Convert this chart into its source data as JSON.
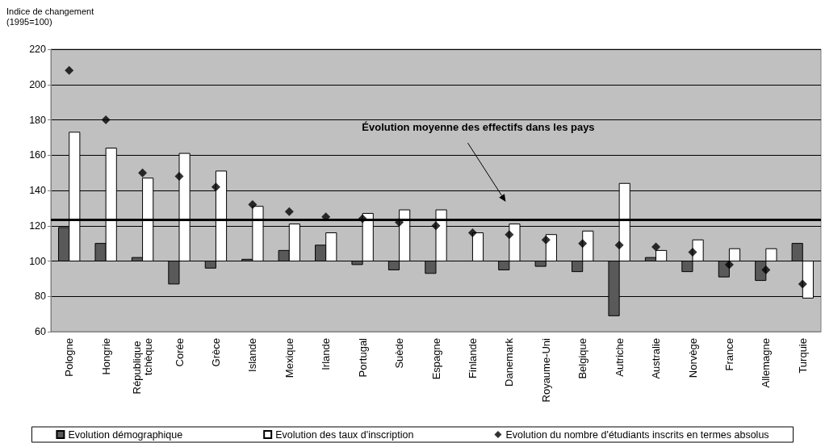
{
  "chart_data": {
    "type": "bar",
    "ylabel": "Indice de changement\n(1995=100)",
    "categories": [
      "Pologne",
      "Hongrie",
      "République tchèque",
      "Corée",
      "Grèce",
      "Islande",
      "Mexique",
      "Irlande",
      "Portugal",
      "Suède",
      "Espagne",
      "Finlande",
      "Danemark",
      "Royaume-Uni",
      "Belgique",
      "Autriche",
      "Australie",
      "Norvège",
      "France",
      "Allemagne",
      "Turquie"
    ],
    "series": [
      {
        "name": "Evolution démographique",
        "color": "#595959",
        "base": [
          100,
          100,
          100,
          100,
          100,
          100,
          100,
          100,
          100,
          100,
          100,
          null,
          100,
          100,
          100,
          100,
          100,
          100,
          100,
          100,
          100
        ],
        "values": [
          19,
          10,
          2,
          -13,
          -4,
          1,
          6,
          9,
          -2,
          -5,
          -7,
          null,
          -5,
          -3,
          -6,
          -31,
          2,
          -6,
          -9,
          -11,
          10
        ]
      },
      {
        "name": "Evolution des taux d'inscription",
        "color": "#ffffff",
        "base": [
          100,
          100,
          100,
          100,
          100,
          100,
          100,
          100,
          100,
          100,
          100,
          100,
          100,
          100,
          100,
          100,
          100,
          100,
          100,
          100,
          100
        ],
        "values": [
          73,
          64,
          47,
          61,
          51,
          31,
          21,
          16,
          27,
          29,
          29,
          16,
          21,
          15,
          17,
          44,
          6,
          12,
          7,
          7,
          -21
        ]
      },
      {
        "name": "Evolution du nombre d'étudiants inscrits en termes absolus",
        "type": "scatter",
        "color": "#000000",
        "marker": "diamond",
        "values": [
          208,
          180,
          150,
          148,
          142,
          132,
          128,
          125,
          124,
          122,
          120,
          116,
          115,
          112,
          110,
          109,
          108,
          105,
          98,
          95,
          87
        ]
      }
    ],
    "ylim": [
      60,
      220
    ],
    "yticks": [
      60,
      80,
      100,
      120,
      140,
      160,
      180,
      200,
      220
    ],
    "grid": "y",
    "legend": "bottom",
    "ref_lines": [
      {
        "axis": "y",
        "value": 123.5,
        "color": "#000000"
      }
    ],
    "annotations": [
      "Évolution moyenne des effectifs dans les pays"
    ]
  }
}
